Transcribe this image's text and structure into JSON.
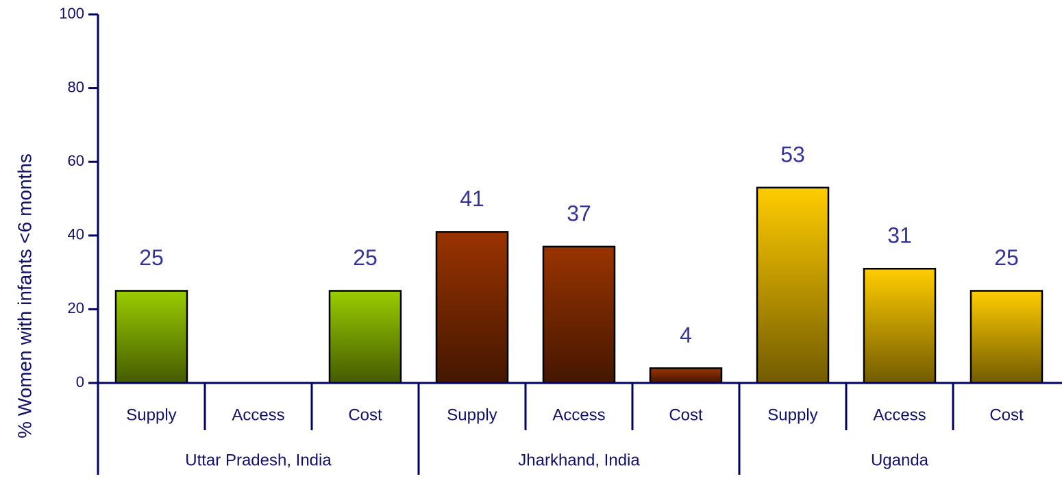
{
  "chart_data": {
    "type": "bar",
    "ylabel": "% Women with infants <6 months",
    "groups": [
      {
        "label": "Uttar Pradesh, India",
        "color": "#99cc00",
        "categories": [
          "Supply",
          "Access",
          "Cost"
        ],
        "values": [
          25,
          null,
          25
        ]
      },
      {
        "label": "Jharkhand, India",
        "color": "#993300",
        "categories": [
          "Supply",
          "Access",
          "Cost"
        ],
        "values": [
          41,
          37,
          4
        ]
      },
      {
        "label": "Uganda",
        "color": "#ffcc00",
        "categories": [
          "Supply",
          "Access",
          "Cost"
        ],
        "values": [
          53,
          31,
          25
        ]
      }
    ],
    "ylim": [
      0,
      100
    ],
    "yticks": [
      0,
      20,
      40,
      60,
      80,
      100
    ],
    "value_labels_shown": true
  }
}
